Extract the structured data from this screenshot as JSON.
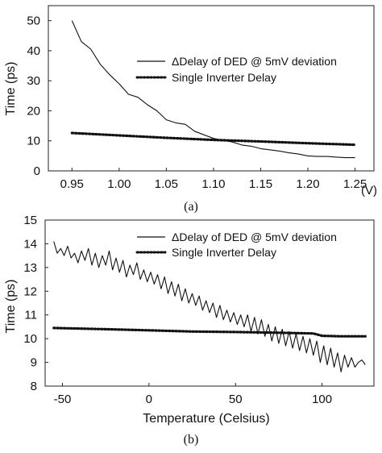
{
  "chart_data": [
    {
      "type": "line",
      "caption": "(a)",
      "xlabel": "",
      "x_unit": "(V)",
      "ylabel": "Time (ps)",
      "xlim": [
        0.925,
        1.27
      ],
      "ylim": [
        0,
        55
      ],
      "xticks": [
        0.95,
        1.0,
        1.05,
        1.1,
        1.15,
        1.2,
        1.25
      ],
      "xtick_labels": [
        "0.95",
        "1.00",
        "1.05",
        "1.10",
        "1.15",
        "1.20",
        "1.25"
      ],
      "yticks": [
        0,
        10,
        20,
        30,
        40,
        50
      ],
      "ytick_labels": [
        "0",
        "10",
        "20",
        "30",
        "40",
        "50"
      ],
      "grid": false,
      "legend_position": "top-right",
      "series": [
        {
          "name": "ΔDelay of DED @ 5mV deviation",
          "style": "solid",
          "x": [
            0.95,
            0.96,
            0.97,
            0.98,
            0.99,
            1.0,
            1.01,
            1.02,
            1.03,
            1.04,
            1.05,
            1.06,
            1.07,
            1.08,
            1.09,
            1.1,
            1.11,
            1.12,
            1.13,
            1.14,
            1.15,
            1.16,
            1.17,
            1.18,
            1.19,
            1.2,
            1.21,
            1.22,
            1.23,
            1.24,
            1.25
          ],
          "y": [
            50.0,
            43.0,
            40.5,
            35.5,
            32.0,
            29.0,
            25.5,
            24.5,
            22.0,
            20.0,
            17.0,
            16.0,
            15.5,
            13.2,
            12.0,
            10.8,
            10.2,
            9.6,
            8.6,
            8.2,
            7.4,
            7.0,
            6.6,
            6.0,
            5.6,
            5.0,
            4.8,
            4.8,
            4.6,
            4.4,
            4.4
          ]
        },
        {
          "name": "Single Inverter Delay",
          "style": "dotted",
          "x": [
            0.95,
            1.0,
            1.05,
            1.1,
            1.15,
            1.2,
            1.25
          ],
          "y": [
            12.6,
            11.8,
            11.0,
            10.3,
            9.8,
            9.2,
            8.7
          ]
        }
      ]
    },
    {
      "type": "line",
      "caption": "(b)",
      "xlabel": "Temperature (Celsius)",
      "x_unit": "",
      "ylabel": "Time (ps)",
      "xlim": [
        -60,
        130
      ],
      "ylim": [
        8,
        15
      ],
      "xticks": [
        -50,
        0,
        50,
        100
      ],
      "xtick_labels": [
        "-50",
        "0",
        "50",
        "100"
      ],
      "yticks": [
        8,
        9,
        10,
        11,
        12,
        13,
        14,
        15
      ],
      "ytick_labels": [
        "8",
        "9",
        "10",
        "11",
        "12",
        "13",
        "14",
        "15"
      ],
      "grid": false,
      "legend_position": "top-right",
      "series": [
        {
          "name": "ΔDelay of DED @ 5mV deviation",
          "style": "solid",
          "x": [
            -55,
            -53,
            -51,
            -49,
            -47,
            -45,
            -43,
            -41,
            -39,
            -37,
            -35,
            -33,
            -31,
            -29,
            -27,
            -25,
            -23,
            -21,
            -19,
            -17,
            -15,
            -13,
            -11,
            -9,
            -7,
            -5,
            -3,
            -1,
            1,
            3,
            5,
            7,
            9,
            11,
            13,
            15,
            17,
            19,
            21,
            23,
            25,
            27,
            29,
            31,
            33,
            35,
            37,
            39,
            41,
            43,
            45,
            47,
            49,
            51,
            53,
            55,
            57,
            59,
            61,
            63,
            65,
            67,
            69,
            71,
            73,
            75,
            77,
            79,
            81,
            83,
            85,
            87,
            89,
            91,
            93,
            95,
            97,
            99,
            101,
            103,
            105,
            107,
            109,
            111,
            113,
            115,
            117,
            119,
            121,
            123,
            125
          ],
          "y": [
            14.1,
            13.6,
            13.8,
            13.5,
            13.9,
            13.4,
            13.6,
            13.2,
            13.7,
            13.3,
            13.8,
            13.1,
            13.6,
            13.0,
            13.5,
            13.1,
            13.7,
            12.9,
            13.4,
            12.8,
            13.3,
            12.6,
            13.1,
            12.7,
            13.2,
            12.5,
            12.9,
            12.4,
            12.8,
            12.3,
            12.7,
            12.1,
            12.6,
            11.9,
            12.4,
            11.8,
            12.3,
            11.6,
            12.1,
            11.5,
            11.9,
            11.4,
            11.8,
            11.2,
            11.6,
            11.1,
            11.5,
            10.9,
            11.4,
            10.8,
            11.2,
            10.7,
            11.1,
            10.6,
            11.0,
            10.5,
            11.0,
            10.3,
            10.9,
            10.2,
            10.8,
            10.1,
            10.6,
            9.9,
            10.5,
            9.8,
            10.4,
            9.7,
            10.3,
            9.6,
            10.2,
            9.5,
            10.1,
            9.4,
            10.0,
            9.3,
            9.9,
            9.0,
            9.7,
            8.9,
            9.6,
            8.8,
            9.4,
            8.6,
            9.3,
            8.8,
            9.2,
            8.8,
            9.0,
            9.1,
            8.9
          ]
        },
        {
          "name": "Single Inverter Delay",
          "style": "dotted",
          "x": [
            -55,
            -25,
            0,
            25,
            50,
            75,
            95,
            100,
            110,
            125
          ],
          "y": [
            10.45,
            10.4,
            10.35,
            10.3,
            10.28,
            10.25,
            10.22,
            10.12,
            10.1,
            10.1
          ]
        }
      ]
    }
  ]
}
